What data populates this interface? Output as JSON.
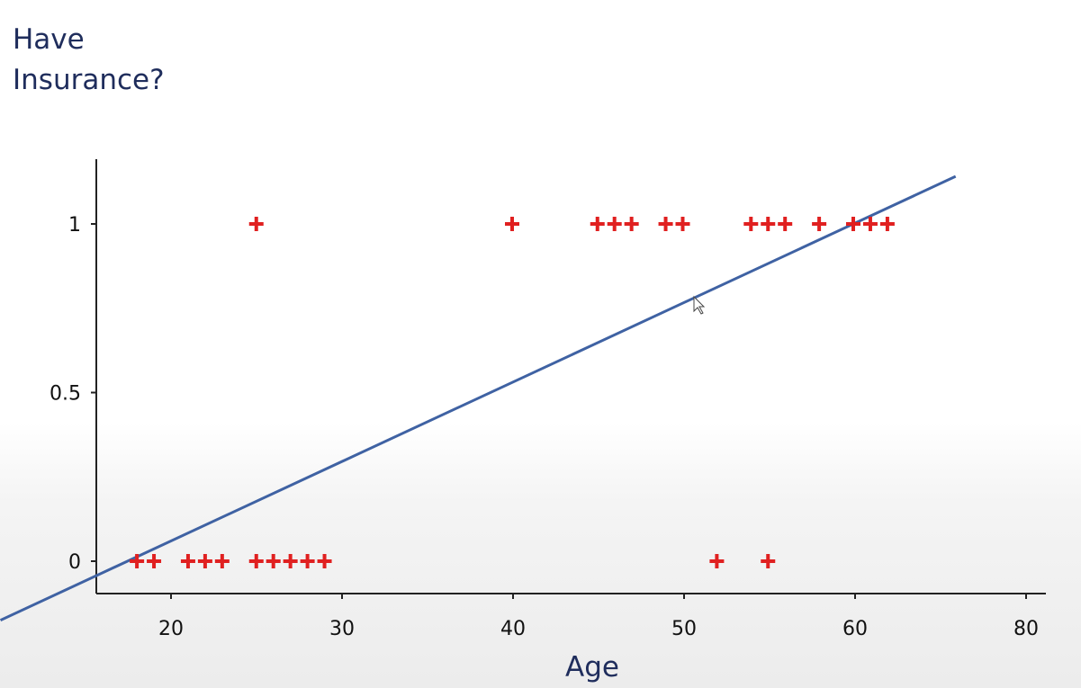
{
  "chart_data": {
    "type": "scatter",
    "title": "",
    "ylabel_lines": [
      "Have",
      "Insurance?"
    ],
    "xlabel": "Age",
    "x_ticks": [
      "20",
      "30",
      "40",
      "50",
      "60",
      "80"
    ],
    "y_ticks": [
      "0",
      "0.5",
      "1"
    ],
    "ylim": [
      -0.1,
      1.2
    ],
    "grid": false,
    "marker": "+",
    "colors": {
      "points": "#e02020",
      "fit_line": "#3f62a3",
      "axes": "#222222",
      "label_text": "#1f2d5c"
    },
    "points": [
      {
        "x": 18,
        "y": 0
      },
      {
        "x": 19,
        "y": 0
      },
      {
        "x": 21,
        "y": 0
      },
      {
        "x": 22,
        "y": 0
      },
      {
        "x": 23,
        "y": 0
      },
      {
        "x": 25,
        "y": 0
      },
      {
        "x": 26,
        "y": 0
      },
      {
        "x": 27,
        "y": 0
      },
      {
        "x": 28,
        "y": 0
      },
      {
        "x": 29,
        "y": 0
      },
      {
        "x": 52,
        "y": 0
      },
      {
        "x": 55,
        "y": 0
      },
      {
        "x": 25,
        "y": 1
      },
      {
        "x": 40,
        "y": 1
      },
      {
        "x": 45,
        "y": 1
      },
      {
        "x": 46,
        "y": 1
      },
      {
        "x": 47,
        "y": 1
      },
      {
        "x": 49,
        "y": 1
      },
      {
        "x": 50,
        "y": 1
      },
      {
        "x": 54,
        "y": 1
      },
      {
        "x": 55,
        "y": 1
      },
      {
        "x": 56,
        "y": 1
      },
      {
        "x": 58,
        "y": 1
      },
      {
        "x": 60,
        "y": 1
      },
      {
        "x": 61,
        "y": 1
      },
      {
        "x": 62,
        "y": 1
      }
    ],
    "fit_line": {
      "slope": 0.0235,
      "intercept": -0.41
    }
  }
}
